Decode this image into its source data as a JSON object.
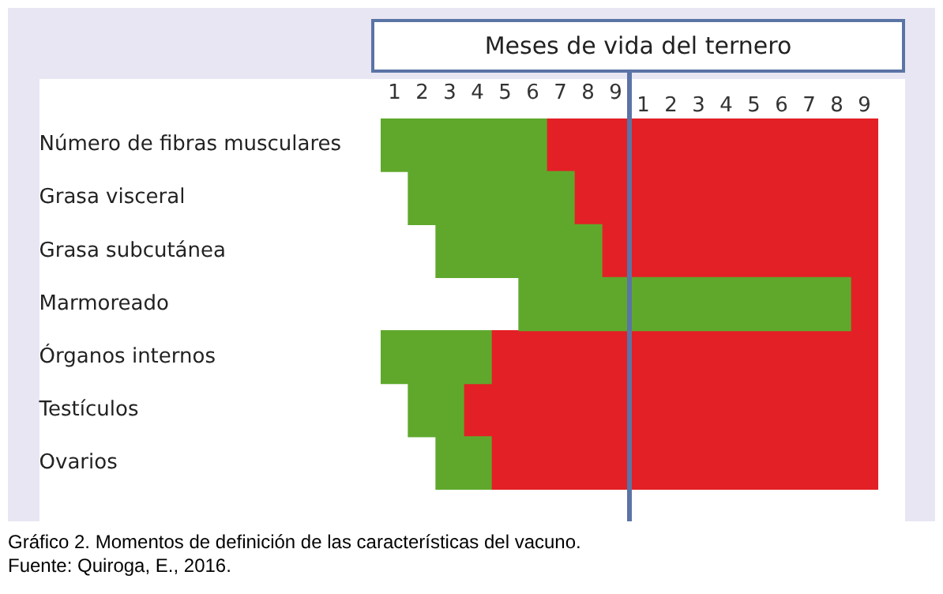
{
  "chart_data": {
    "type": "bar",
    "orientation": "horizontal",
    "title": "Meses de vida del ternero",
    "categories": [
      "Número de fibras musculares",
      "Grasa visceral",
      "Grasa subcutánea",
      "Marmoreado",
      "Órganos internos",
      "Testículos",
      "Ovarios"
    ],
    "series": [
      {
        "color": "#5fa82c",
        "base": [
          0,
          1,
          2,
          5,
          0,
          1,
          2
        ],
        "values": [
          6,
          6,
          6,
          12,
          4,
          2,
          2
        ]
      },
      {
        "color": "#e32026",
        "base": [
          6,
          7,
          8,
          17,
          4,
          3,
          4
        ],
        "values": [
          12,
          11,
          10,
          1,
          14,
          15,
          14
        ]
      }
    ],
    "xlim": [
      0,
      18
    ],
    "xticks": [
      {
        "value": 0.5,
        "label": "1"
      },
      {
        "value": 1.5,
        "label": "2"
      },
      {
        "value": 2.5,
        "label": "3"
      },
      {
        "value": 3.5,
        "label": "4"
      },
      {
        "value": 4.5,
        "label": "5"
      },
      {
        "value": 5.5,
        "label": "6"
      },
      {
        "value": 6.5,
        "label": "7"
      },
      {
        "value": 7.5,
        "label": "8"
      },
      {
        "value": 8.5,
        "label": "9"
      }
    ],
    "x2lim": [
      -9,
      9
    ],
    "x2ticks": [
      {
        "value": 0.5,
        "label": "1"
      },
      {
        "value": 1.5,
        "label": "2"
      },
      {
        "value": 2.5,
        "label": "3"
      },
      {
        "value": 3.5,
        "label": "4"
      },
      {
        "value": 4.5,
        "label": "5"
      },
      {
        "value": 5.5,
        "label": "6"
      },
      {
        "value": 6.5,
        "label": "7"
      },
      {
        "value": 7.5,
        "label": "8"
      },
      {
        "value": 8.5,
        "label": "9"
      }
    ],
    "ref_lines": [
      {
        "axis": "x",
        "value": 9,
        "color": "#5b74a6"
      }
    ],
    "grid": false,
    "legend": false,
    "annotations": [
      "Gráfico 2. Momentos de definición de las características del vacuno.",
      "Fuente: Quiroga, E., 2016."
    ]
  }
}
